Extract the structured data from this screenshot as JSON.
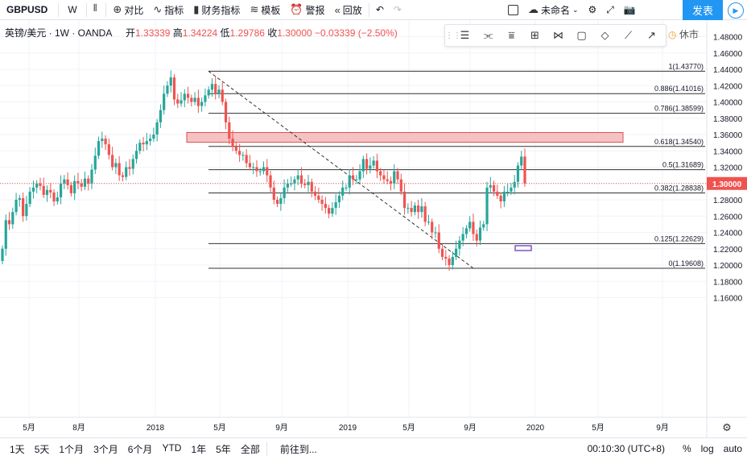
{
  "toolbar": {
    "symbol": "GBPUSD",
    "interval": "W",
    "compare": "对比",
    "indicators": "指标",
    "financials": "财务指标",
    "templates": "模板",
    "alerts": "警报",
    "replay": "回放",
    "layout_name": "未命名",
    "publish": "发表"
  },
  "legend": {
    "title": "英镑/美元 · 1W · OANDA",
    "open_label": "开",
    "open": "1.33339",
    "high_label": "高",
    "high": "1.34224",
    "low_label": "低",
    "low": "1.29786",
    "close_label": "收",
    "close": "1.30000",
    "change": "−0.03339 (−2.50%)"
  },
  "market_status": "休市",
  "price_axis": {
    "ticks": [
      "1.48000",
      "1.46000",
      "1.44000",
      "1.42000",
      "1.40000",
      "1.38000",
      "1.36000",
      "1.34000",
      "1.32000",
      "1.30000",
      "1.28000",
      "1.26000",
      "1.24000",
      "1.22000",
      "1.20000",
      "1.18000",
      "1.16000"
    ],
    "last_price": "1.30000",
    "last_color": "#ef5350"
  },
  "time_axis": [
    "5月",
    "8月",
    "2018",
    "5月",
    "9月",
    "2019",
    "5月",
    "9月",
    "2020",
    "5月",
    "9月"
  ],
  "fib_levels": [
    {
      "label": "1(1.43770)",
      "price": 1.4377
    },
    {
      "label": "0.886(1.41016)",
      "price": 1.41016
    },
    {
      "label": "0.786(1.38599)",
      "price": 1.38599
    },
    {
      "label": "0.618(1.34540)",
      "price": 1.3454
    },
    {
      "label": "0.5(1.31689)",
      "price": 1.31689
    },
    {
      "label": "0.382(1.28838)",
      "price": 1.28838
    },
    {
      "label": "0.125(1.22629)",
      "price": 1.22629
    },
    {
      "label": "0(1.19608)",
      "price": 1.19608
    }
  ],
  "zone": {
    "top": 1.3625,
    "bottom": 1.3505,
    "color": "#f4c2c2"
  },
  "bottom_bar": {
    "ranges": [
      "1天",
      "5天",
      "1个月",
      "3个月",
      "6个月",
      "YTD",
      "1年",
      "5年",
      "全部"
    ],
    "goto": "前往到...",
    "clock": "00:10:30 (UTC+8)",
    "percent": "%",
    "log": "log",
    "auto": "auto"
  },
  "colors": {
    "up": "#26a69a",
    "down": "#ef5350"
  }
}
